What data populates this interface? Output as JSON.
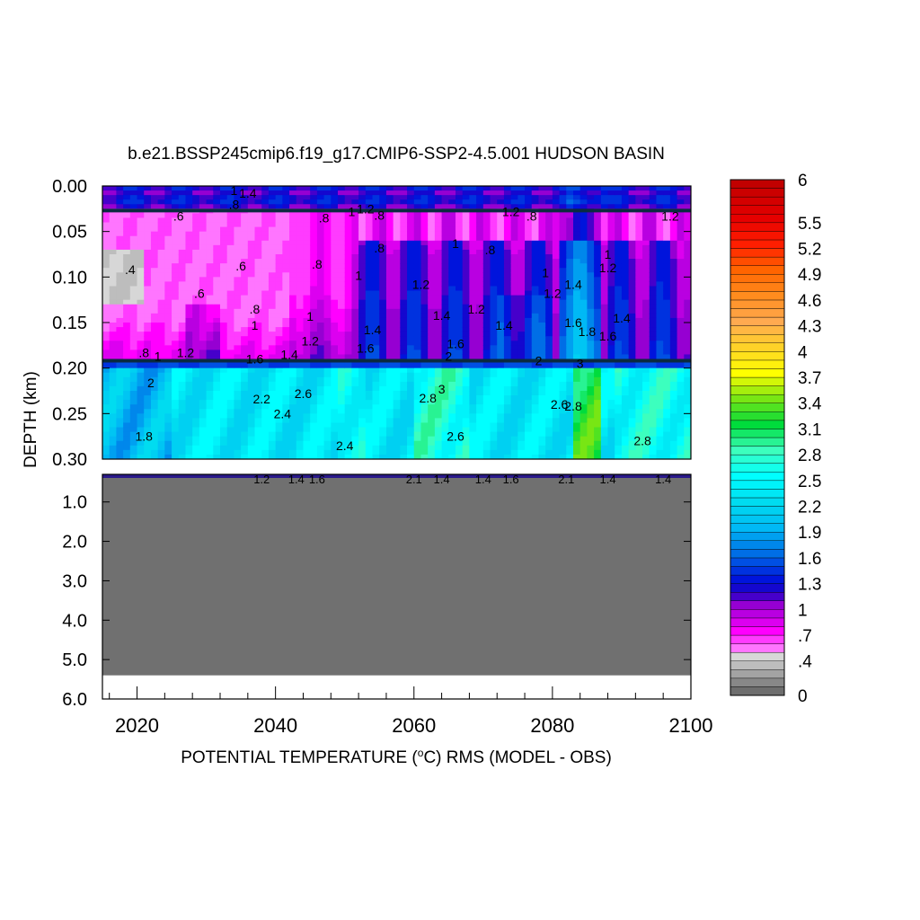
{
  "title": "b.e21.BSSP245cmip6.f19_g17.CMIP6-SSP2-4.5.001 HUDSON BASIN",
  "xlabel": "POTENTIAL TEMPERATURE (",
  "xlabel_sup": "o",
  "xlabel_rest": "C) RMS (MODEL - OBS)",
  "ylabel": "DEPTH (km)",
  "chart_data": {
    "type": "heatmap",
    "title": "b.e21.BSSP245cmip6.f19_g17.CMIP6-SSP2-4.5.001 HUDSON BASIN",
    "xlabel": "POTENTIAL TEMPERATURE (oC) RMS (MODEL - OBS)",
    "ylabel": "DEPTH (km)",
    "xlim": [
      2015,
      2100
    ],
    "x_ticks": [
      2020,
      2040,
      2060,
      2080,
      2100
    ],
    "x_tick_labels": [
      "2020",
      "2040",
      "2060",
      "2080",
      "2100"
    ],
    "upper_panel": {
      "ylim": [
        0.0,
        0.3
      ],
      "y_ticks": [
        0.0,
        0.05,
        0.1,
        0.15,
        0.2,
        0.25,
        0.3
      ],
      "y_tick_labels": [
        "0.00",
        "0.05",
        "0.10",
        "0.15",
        "0.20",
        "0.25",
        "0.30"
      ]
    },
    "lower_panel": {
      "ylim": [
        0.3,
        6.0
      ],
      "y_ticks": [
        1.0,
        2.0,
        3.0,
        4.0,
        5.0,
        6.0
      ],
      "y_tick_labels": [
        "1.0",
        "2.0",
        "3.0",
        "4.0",
        "5.0",
        "6.0"
      ],
      "bottom_depth": 5.4
    },
    "colorbar": {
      "min": 0,
      "max": 6,
      "step": 0.1,
      "tick_values": [
        0,
        0.4,
        0.7,
        1,
        1.3,
        1.6,
        1.9,
        2.2,
        2.5,
        2.8,
        3.1,
        3.4,
        3.7,
        4,
        4.3,
        4.6,
        4.9,
        5.2,
        5.5,
        6
      ],
      "tick_labels": [
        "0",
        ".4",
        ".7",
        "1",
        "1.3",
        "1.6",
        "1.9",
        "2.2",
        "2.5",
        "2.8",
        "3.1",
        "3.4",
        "3.7",
        "4",
        "4.3",
        "4.6",
        "4.9",
        "5.2",
        "5.5",
        "6"
      ]
    },
    "contour_labels": [
      {
        "text": ".6",
        "x": 2026,
        "y": 0.033
      },
      {
        "text": ".8",
        "x": 2047,
        "y": 0.035
      },
      {
        "text": ".4",
        "x": 2019,
        "y": 0.092
      },
      {
        "text": ".6",
        "x": 2029,
        "y": 0.118
      },
      {
        "text": ".6",
        "x": 2035,
        "y": 0.088
      },
      {
        "text": ".8",
        "x": 2037,
        "y": 0.135
      },
      {
        "text": ".8",
        "x": 2046,
        "y": 0.086
      },
      {
        "text": "1",
        "x": 2037,
        "y": 0.153
      },
      {
        "text": "1",
        "x": 2045,
        "y": 0.143
      },
      {
        "text": "1.2",
        "x": 2045,
        "y": 0.17
      },
      {
        "text": ".8",
        "x": 2021,
        "y": 0.183
      },
      {
        "text": "1",
        "x": 2023,
        "y": 0.187
      },
      {
        "text": "1.2",
        "x": 2027,
        "y": 0.183
      },
      {
        "text": "1.6",
        "x": 2037,
        "y": 0.19
      },
      {
        "text": "1.4",
        "x": 2042,
        "y": 0.185
      },
      {
        "text": "2",
        "x": 2022,
        "y": 0.216
      },
      {
        "text": "1.8",
        "x": 2021,
        "y": 0.275
      },
      {
        "text": "2.2",
        "x": 2038,
        "y": 0.234
      },
      {
        "text": "2.4",
        "x": 2041,
        "y": 0.25
      },
      {
        "text": "2.6",
        "x": 2044,
        "y": 0.228
      },
      {
        "text": "2.4",
        "x": 2050,
        "y": 0.285
      },
      {
        "text": "1",
        "x": 2051,
        "y": 0.028
      },
      {
        "text": "1.2",
        "x": 2053,
        "y": 0.025
      },
      {
        "text": ".8",
        "x": 2055,
        "y": 0.032
      },
      {
        "text": ".8",
        "x": 2055,
        "y": 0.068
      },
      {
        "text": "1",
        "x": 2052,
        "y": 0.098
      },
      {
        "text": "1.4",
        "x": 2054,
        "y": 0.158
      },
      {
        "text": "1.6",
        "x": 2053,
        "y": 0.178
      },
      {
        "text": "1.2",
        "x": 2061,
        "y": 0.108
      },
      {
        "text": "1.4",
        "x": 2064,
        "y": 0.142
      },
      {
        "text": "1.6",
        "x": 2066,
        "y": 0.173
      },
      {
        "text": "1",
        "x": 2066,
        "y": 0.063
      },
      {
        "text": "1.2",
        "x": 2069,
        "y": 0.135
      },
      {
        "text": ".8",
        "x": 2071,
        "y": 0.07
      },
      {
        "text": "1.4",
        "x": 2073,
        "y": 0.153
      },
      {
        "text": "1.2",
        "x": 2074,
        "y": 0.028
      },
      {
        "text": ".8",
        "x": 2077,
        "y": 0.033
      },
      {
        "text": "2",
        "x": 2065,
        "y": 0.187
      },
      {
        "text": "2.8",
        "x": 2062,
        "y": 0.233
      },
      {
        "text": "3",
        "x": 2064,
        "y": 0.223
      },
      {
        "text": "2.6",
        "x": 2066,
        "y": 0.275
      },
      {
        "text": "1",
        "x": 2079,
        "y": 0.095
      },
      {
        "text": "1.2",
        "x": 2080,
        "y": 0.118
      },
      {
        "text": "1.4",
        "x": 2083,
        "y": 0.108
      },
      {
        "text": "1.6",
        "x": 2083,
        "y": 0.15
      },
      {
        "text": "1.8",
        "x": 2085,
        "y": 0.16
      },
      {
        "text": "1.6",
        "x": 2088,
        "y": 0.165
      },
      {
        "text": "1",
        "x": 2088,
        "y": 0.075
      },
      {
        "text": "1.2",
        "x": 2088,
        "y": 0.09
      },
      {
        "text": "1.4",
        "x": 2090,
        "y": 0.145
      },
      {
        "text": "1.2",
        "x": 2097,
        "y": 0.033
      },
      {
        "text": "2",
        "x": 2078,
        "y": 0.192
      },
      {
        "text": "3",
        "x": 2084,
        "y": 0.195
      },
      {
        "text": "2.6",
        "x": 2081,
        "y": 0.24
      },
      {
        "text": "2.8",
        "x": 2083,
        "y": 0.242
      },
      {
        "text": "2.8",
        "x": 2093,
        "y": 0.28
      },
      {
        "text": "1",
        "x": 2034,
        "y": 0.005
      },
      {
        "text": ".8",
        "x": 2034,
        "y": 0.02
      },
      {
        "text": "1.4",
        "x": 2036,
        "y": 0.008
      }
    ],
    "deep_labels": [
      {
        "text": "1.2",
        "x": 2038
      },
      {
        "text": "1.4",
        "x": 2043
      },
      {
        "text": "1.6",
        "x": 2046
      },
      {
        "text": "2.1",
        "x": 2060
      },
      {
        "text": "1.4",
        "x": 2064
      },
      {
        "text": "1.4",
        "x": 2070
      },
      {
        "text": "1.6",
        "x": 2074
      },
      {
        "text": "2.1",
        "x": 2082
      },
      {
        "text": "1.4",
        "x": 2088
      },
      {
        "text": "1.4",
        "x": 2096
      }
    ]
  }
}
